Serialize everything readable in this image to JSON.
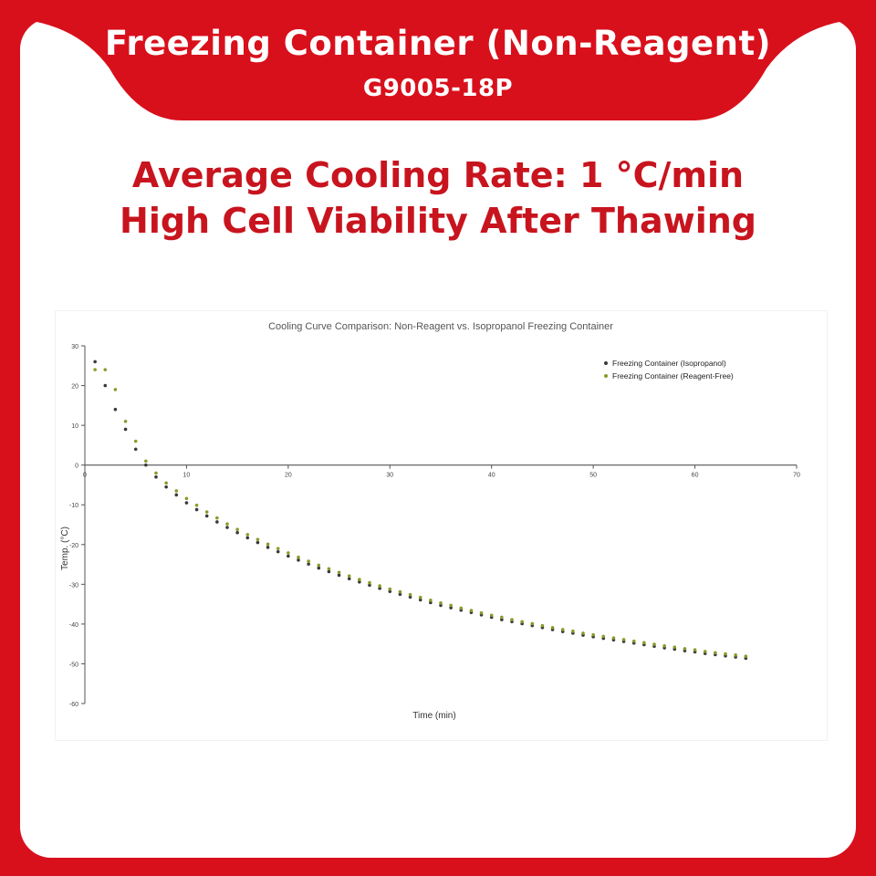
{
  "banner": {
    "title": "Freezing Container (Non-Reagent)",
    "code": "G9005-18P"
  },
  "headline": {
    "line1": "Average Cooling Rate: 1 °C/min",
    "line2": "High Cell Viability After Thawing"
  },
  "colors": {
    "brand_red": "#d8101c",
    "headline_red": "#c8141e",
    "white": "#ffffff"
  },
  "chart_data": {
    "type": "scatter",
    "title": "Cooling Curve Comparison: Non-Reagent vs. Isopropanol Freezing Container",
    "xlabel": "Time (min)",
    "ylabel": "Temp. (°C)",
    "xlim": [
      0,
      70
    ],
    "ylim": [
      -60,
      30
    ],
    "xticks": [
      0,
      10,
      20,
      30,
      40,
      50,
      60,
      70
    ],
    "yticks": [
      30,
      20,
      10,
      0,
      -10,
      -20,
      -30,
      -40,
      -50,
      -60
    ],
    "grid": false,
    "legend_position": "top-right",
    "series": [
      {
        "name": "Freezing Container (Isopropanol)",
        "color": "#3a3a3a",
        "x": [
          1,
          2,
          3,
          4,
          5,
          6,
          7,
          8,
          9,
          10,
          11,
          12,
          13,
          14,
          15,
          16,
          17,
          18,
          19,
          20,
          21,
          22,
          23,
          24,
          25,
          26,
          27,
          28,
          29,
          30,
          31,
          32,
          33,
          34,
          35,
          36,
          37,
          38,
          39,
          40,
          41,
          42,
          43,
          44,
          45,
          46,
          47,
          48,
          49,
          50,
          51,
          52,
          53,
          54,
          55,
          56,
          57,
          58,
          59,
          60,
          61,
          62,
          63,
          64,
          65
        ],
        "y": [
          26,
          20,
          14,
          9,
          4,
          0,
          -3,
          -5.5,
          -7.5,
          -9.5,
          -11.2,
          -12.8,
          -14.3,
          -15.7,
          -17,
          -18.3,
          -19.5,
          -20.7,
          -21.8,
          -22.9,
          -23.9,
          -24.9,
          -25.9,
          -26.8,
          -27.7,
          -28.6,
          -29.4,
          -30.2,
          -31,
          -31.8,
          -32.5,
          -33.2,
          -33.9,
          -34.6,
          -35.3,
          -35.9,
          -36.5,
          -37.1,
          -37.7,
          -38.3,
          -38.9,
          -39.4,
          -39.9,
          -40.4,
          -40.9,
          -41.4,
          -41.9,
          -42.3,
          -42.8,
          -43.2,
          -43.6,
          -44,
          -44.4,
          -44.8,
          -45.2,
          -45.6,
          -46,
          -46.3,
          -46.7,
          -47,
          -47.4,
          -47.7,
          -48,
          -48.3,
          -48.6
        ]
      },
      {
        "name": "Freezing Container (Reagent-Free)",
        "color": "#8a9a2a",
        "x": [
          1,
          2,
          3,
          4,
          5,
          6,
          7,
          8,
          9,
          10,
          11,
          12,
          13,
          14,
          15,
          16,
          17,
          18,
          19,
          20,
          21,
          22,
          23,
          24,
          25,
          26,
          27,
          28,
          29,
          30,
          31,
          32,
          33,
          34,
          35,
          36,
          37,
          38,
          39,
          40,
          41,
          42,
          43,
          44,
          45,
          46,
          47,
          48,
          49,
          50,
          51,
          52,
          53,
          54,
          55,
          56,
          57,
          58,
          59,
          60,
          61,
          62,
          63,
          64,
          65
        ],
        "y": [
          24,
          24,
          19,
          11,
          6,
          1,
          -2,
          -4.5,
          -6.5,
          -8.4,
          -10.1,
          -11.8,
          -13.3,
          -14.8,
          -16.2,
          -17.5,
          -18.7,
          -19.9,
          -21,
          -22.1,
          -23.2,
          -24.2,
          -25.2,
          -26.1,
          -27,
          -27.9,
          -28.8,
          -29.6,
          -30.4,
          -31.2,
          -31.9,
          -32.6,
          -33.3,
          -34,
          -34.7,
          -35.3,
          -36,
          -36.6,
          -37.2,
          -37.8,
          -38.3,
          -38.9,
          -39.4,
          -39.9,
          -40.4,
          -40.9,
          -41.4,
          -41.8,
          -42.3,
          -42.7,
          -43.1,
          -43.5,
          -43.9,
          -44.3,
          -44.7,
          -45.1,
          -45.5,
          -45.8,
          -46.2,
          -46.5,
          -46.9,
          -47.2,
          -47.5,
          -47.8,
          -48.1
        ]
      }
    ]
  }
}
